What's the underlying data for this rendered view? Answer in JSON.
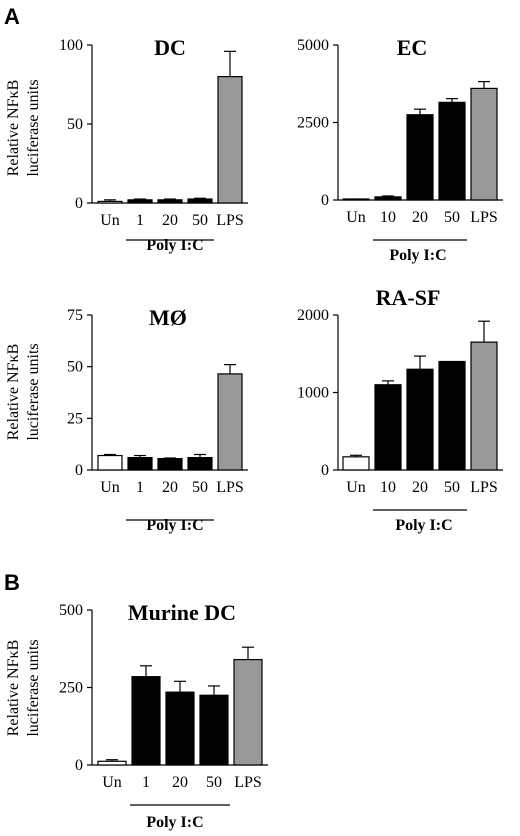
{
  "panel_labels": [
    "A",
    "B"
  ],
  "y_axis_label": [
    "Relative NFκB",
    "luciferase units"
  ],
  "group_label": "Poly I:C",
  "colors": {
    "Un": "#ffffff",
    "PolyIC": "#000000",
    "LPS": "#999999",
    "edge": "#000000"
  },
  "chart_data": [
    {
      "type": "bar",
      "title": "DC",
      "panel": "A",
      "categories": [
        "Un",
        "1",
        "20",
        "50",
        "LPS"
      ],
      "values": [
        1,
        2,
        2,
        2.5,
        80
      ],
      "errors": [
        1,
        0.5,
        0.5,
        0.5,
        16
      ],
      "groups": [
        "Un",
        "PolyIC",
        "PolyIC",
        "PolyIC",
        "LPS"
      ],
      "ylim": [
        0,
        100
      ],
      "yticks": [
        0,
        50,
        100
      ]
    },
    {
      "type": "bar",
      "title": "EC",
      "panel": "A",
      "categories": [
        "Un",
        "10",
        "20",
        "50",
        "LPS"
      ],
      "values": [
        20,
        100,
        2750,
        3150,
        3600
      ],
      "errors": [
        10,
        30,
        180,
        120,
        220
      ],
      "groups": [
        "Un",
        "PolyIC",
        "PolyIC",
        "PolyIC",
        "LPS"
      ],
      "ylim": [
        0,
        5000
      ],
      "yticks": [
        0,
        2500,
        5000
      ]
    },
    {
      "type": "bar",
      "title": "MØ",
      "panel": "A",
      "categories": [
        "Un",
        "1",
        "20",
        "50",
        "LPS"
      ],
      "values": [
        7,
        6,
        5.5,
        6,
        46.5
      ],
      "errors": [
        0.5,
        1,
        0.3,
        1.5,
        4.5
      ],
      "groups": [
        "Un",
        "PolyIC",
        "PolyIC",
        "PolyIC",
        "LPS"
      ],
      "ylim": [
        0,
        75
      ],
      "yticks": [
        0,
        25,
        50,
        75
      ]
    },
    {
      "type": "bar",
      "title": "RA-SF",
      "panel": "A",
      "categories": [
        "Un",
        "10",
        "20",
        "50",
        "LPS"
      ],
      "values": [
        170,
        1100,
        1300,
        1400,
        1650
      ],
      "errors": [
        20,
        50,
        170,
        0,
        270
      ],
      "groups": [
        "Un",
        "PolyIC",
        "PolyIC",
        "PolyIC",
        "LPS"
      ],
      "ylim": [
        0,
        2000
      ],
      "yticks": [
        0,
        1000,
        2000
      ]
    },
    {
      "type": "bar",
      "title": "Murine DC",
      "panel": "B",
      "categories": [
        "Un",
        "1",
        "20",
        "50",
        "LPS"
      ],
      "values": [
        12,
        285,
        235,
        225,
        340
      ],
      "errors": [
        5,
        35,
        35,
        30,
        40
      ],
      "groups": [
        "Un",
        "PolyIC",
        "PolyIC",
        "PolyIC",
        "LPS"
      ],
      "ylim": [
        0,
        500
      ],
      "yticks": [
        0,
        250,
        500
      ]
    }
  ]
}
